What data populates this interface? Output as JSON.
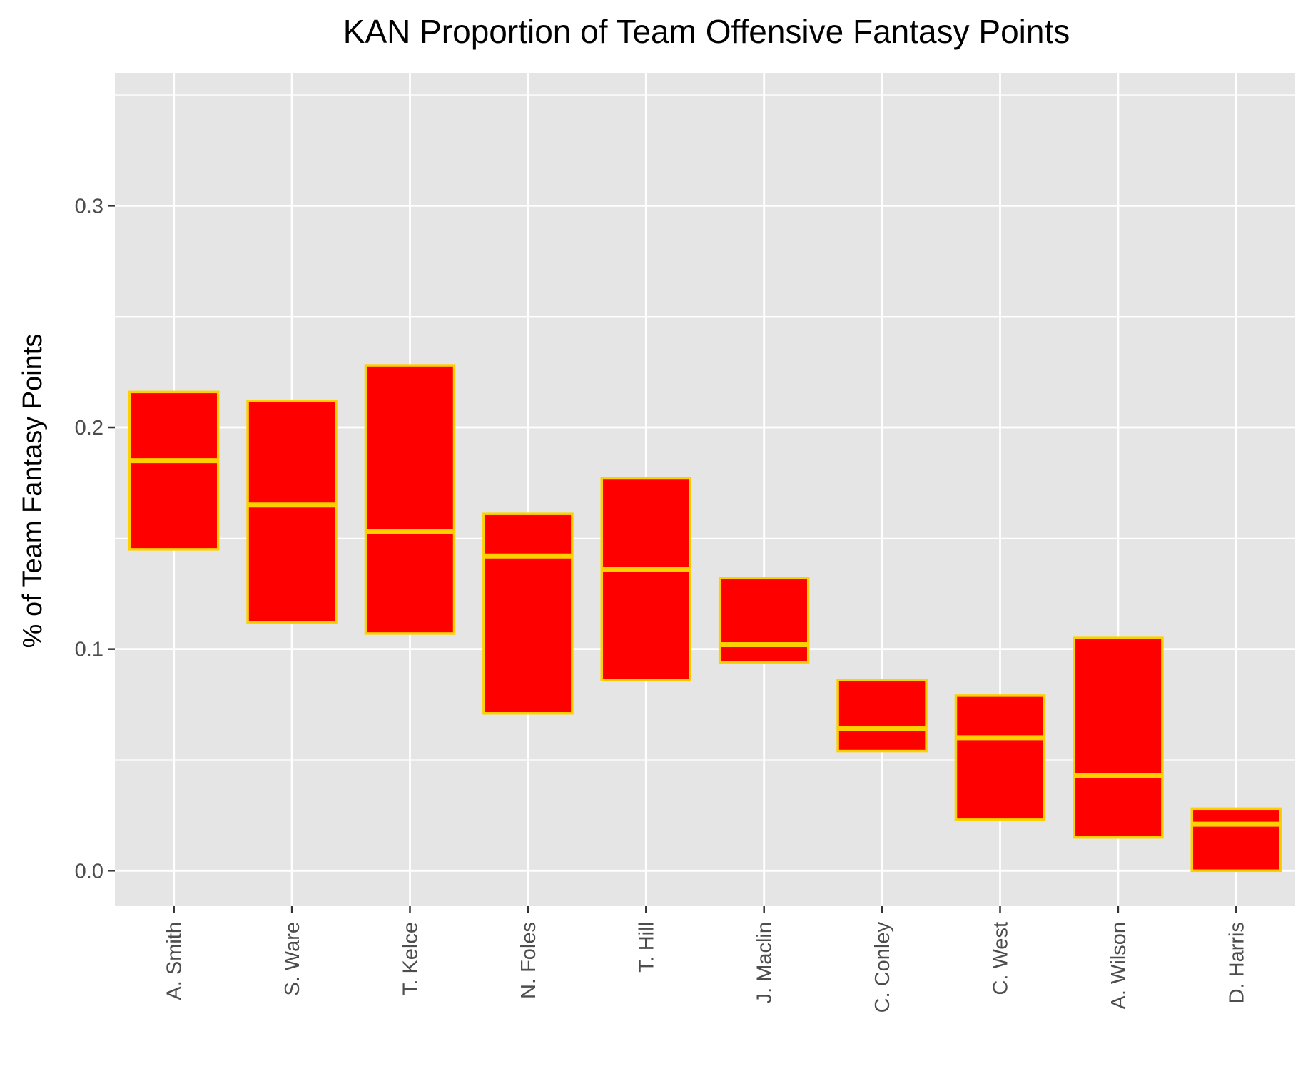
{
  "chart_data": {
    "type": "boxplot",
    "title": "KAN Proportion of Team Offensive Fantasy Points",
    "xlabel": "",
    "ylabel": "% of Team Fantasy Points",
    "ylim": [
      -0.016,
      0.36
    ],
    "yticks": [
      0.0,
      0.1,
      0.2,
      0.3
    ],
    "ytick_labels": [
      "0.0",
      "0.1",
      "0.2",
      "0.3"
    ],
    "grid": true,
    "categories": [
      "A. Smith",
      "S. Ware",
      "T. Kelce",
      "N. Foles",
      "T. Hill",
      "J. Maclin",
      "C. Conley",
      "C. West",
      "A. Wilson",
      "D. Harris"
    ],
    "boxes": [
      {
        "lower": 0.145,
        "median": 0.185,
        "upper": 0.216
      },
      {
        "lower": 0.112,
        "median": 0.165,
        "upper": 0.212
      },
      {
        "lower": 0.107,
        "median": 0.153,
        "upper": 0.228
      },
      {
        "lower": 0.071,
        "median": 0.142,
        "upper": 0.161
      },
      {
        "lower": 0.086,
        "median": 0.136,
        "upper": 0.177
      },
      {
        "lower": 0.094,
        "median": 0.102,
        "upper": 0.132
      },
      {
        "lower": 0.054,
        "median": 0.064,
        "upper": 0.086
      },
      {
        "lower": 0.023,
        "median": 0.06,
        "upper": 0.079
      },
      {
        "lower": 0.015,
        "median": 0.043,
        "upper": 0.105
      },
      {
        "lower": 0.0,
        "median": 0.021,
        "upper": 0.028
      }
    ],
    "colors": {
      "fill": "#ff0000",
      "outline": "#ffd000",
      "panel": "#e5e5e5",
      "grid": "#ffffff",
      "tick_text": "#4d4d4d",
      "tick_mark": "#333333"
    }
  }
}
